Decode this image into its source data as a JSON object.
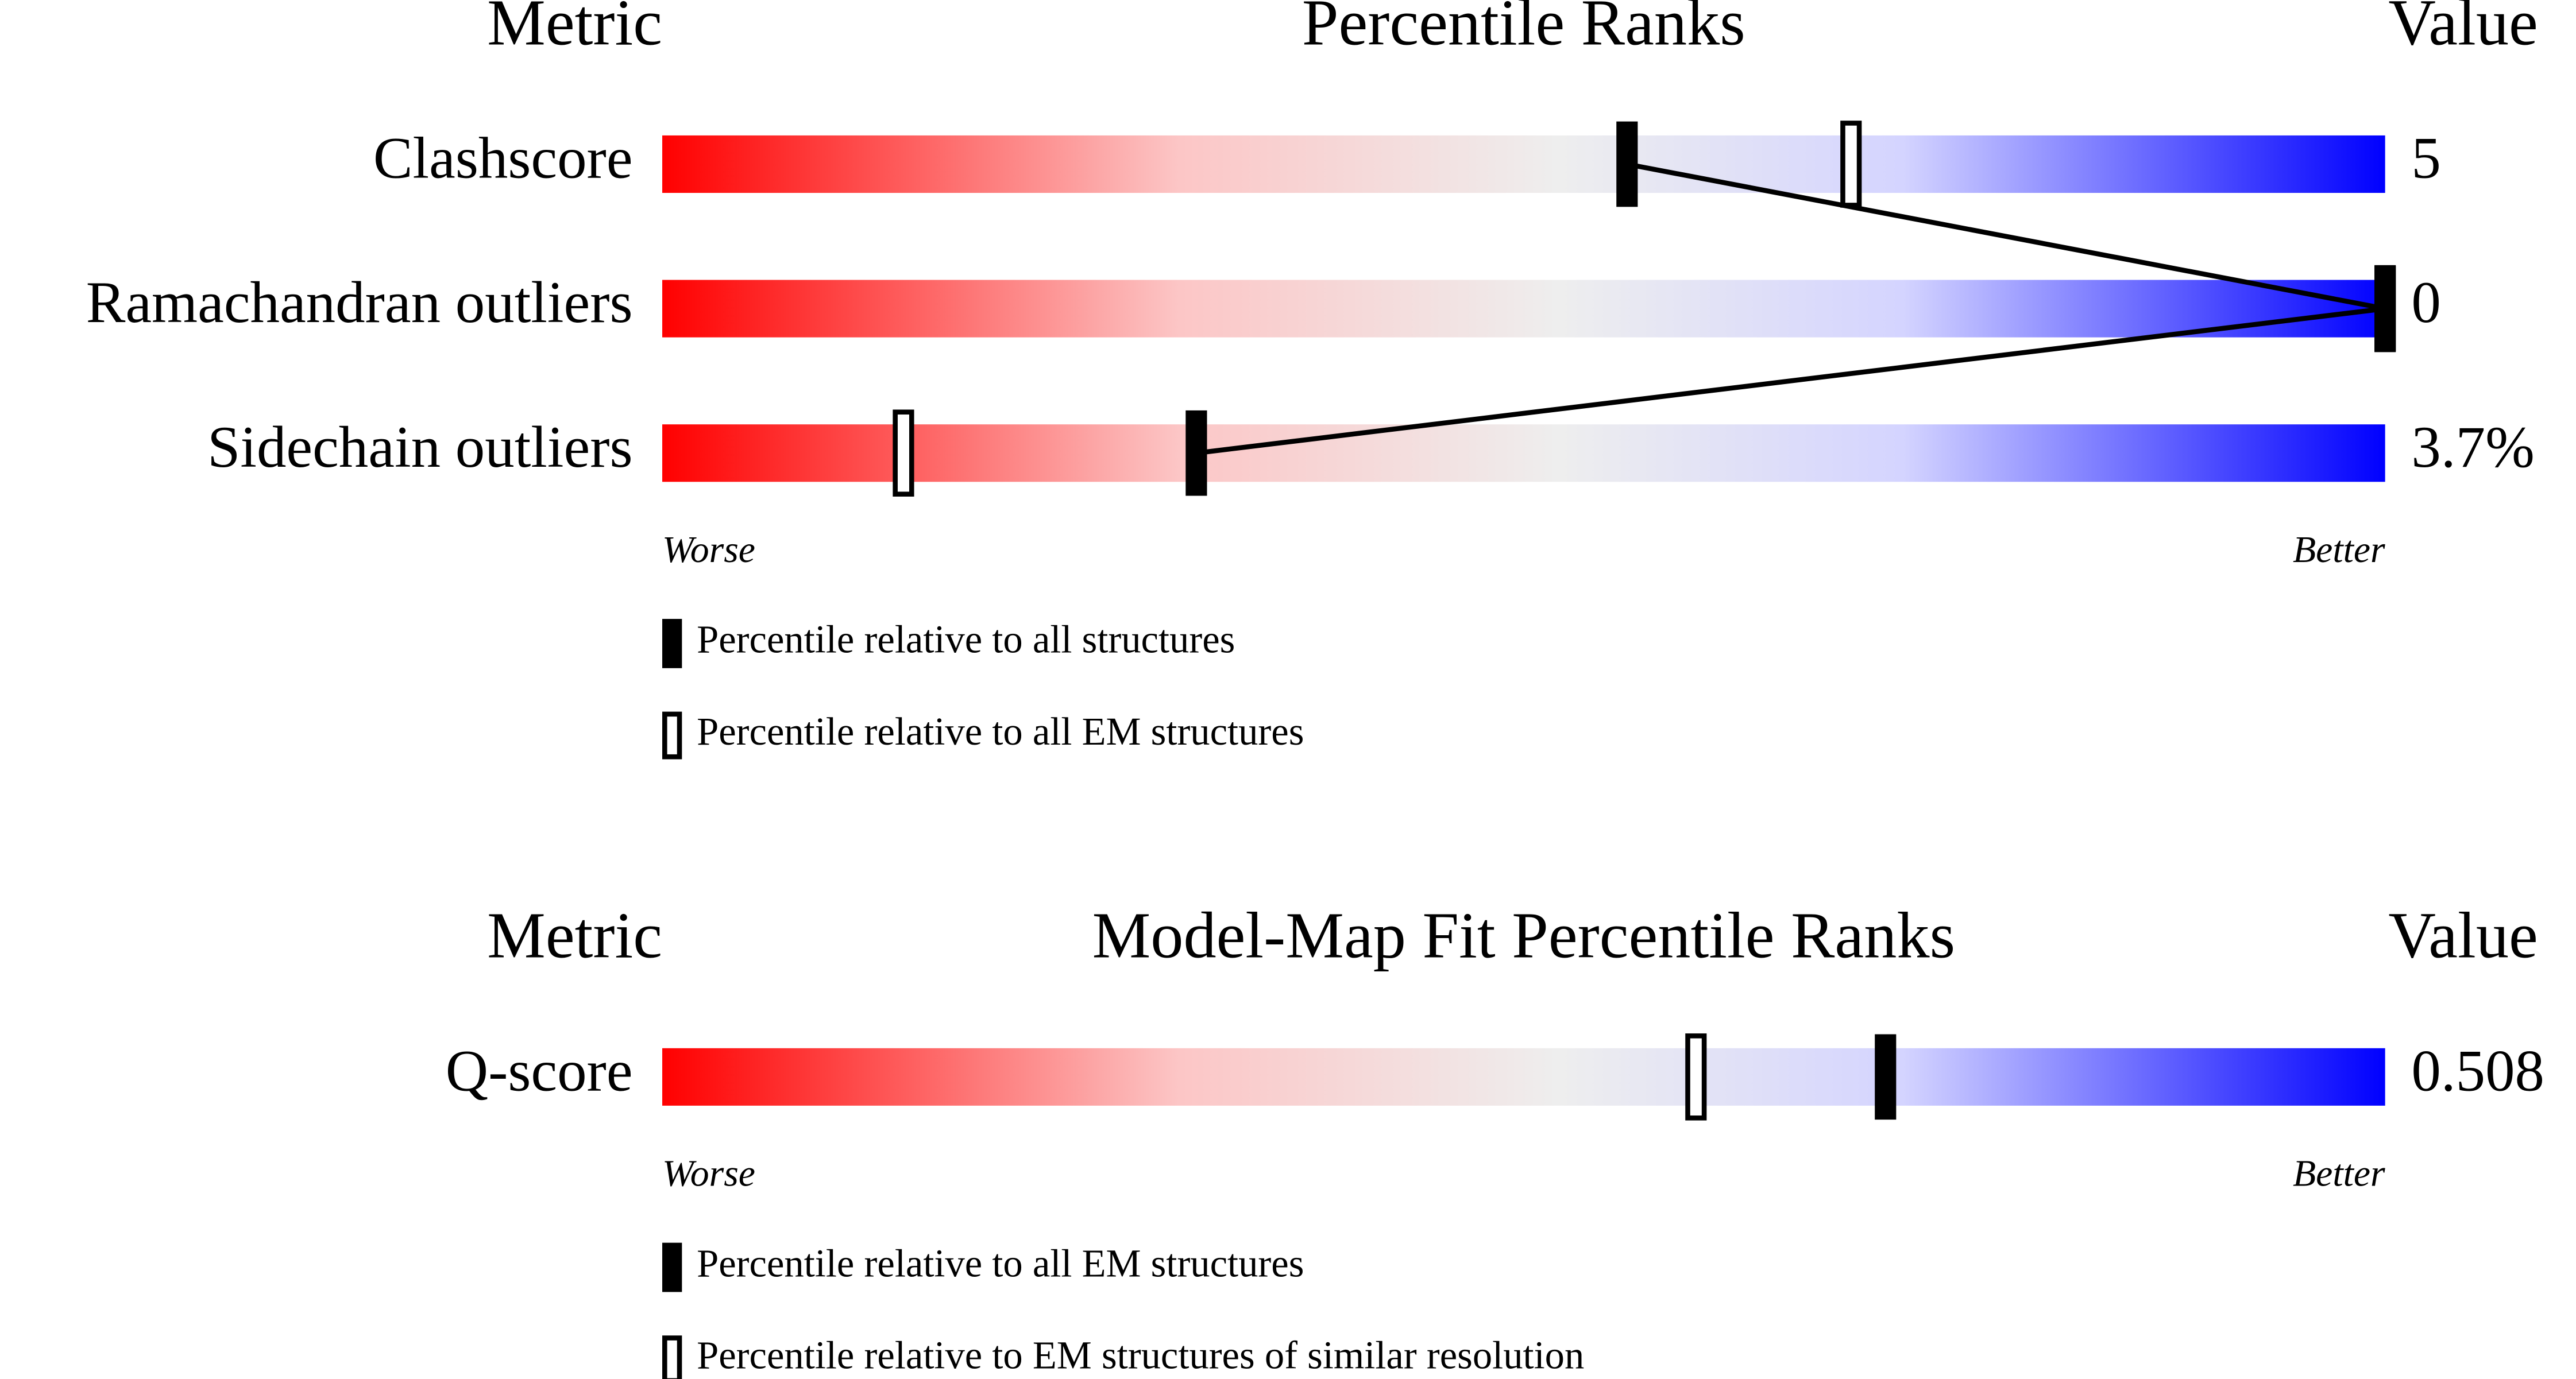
{
  "chart_data": [
    {
      "type": "percentile",
      "header_metric": "Metric",
      "title": "Percentile Ranks",
      "header_value": "Value",
      "categories": [
        "Clashscore",
        "Ramachandran outliers",
        "Sidechain outliers"
      ],
      "metric_values": [
        "5",
        "0",
        "3.7%"
      ],
      "series": [
        {
          "name": "Percentile relative to all structures",
          "style": "filled",
          "color": "#000000",
          "values": [
            56,
            100,
            31
          ]
        },
        {
          "name": "Percentile relative to all EM structures",
          "style": "open",
          "color": "#000000",
          "values": [
            69,
            100,
            14
          ]
        }
      ],
      "xlim": [
        0,
        100
      ],
      "low_label": "Worse",
      "high_label": "Better",
      "connect_series": 0
    },
    {
      "type": "percentile",
      "header_metric": "Metric",
      "title": "Model-Map Fit Percentile Ranks",
      "header_value": "Value",
      "categories": [
        "Q-score"
      ],
      "metric_values": [
        "0.508"
      ],
      "series": [
        {
          "name": "Percentile relative to all EM structures",
          "style": "filled",
          "color": "#000000",
          "values": [
            71
          ]
        },
        {
          "name": "Percentile relative to EM structures of similar resolution",
          "style": "open",
          "color": "#000000",
          "values": [
            60
          ]
        }
      ],
      "xlim": [
        0,
        100
      ],
      "low_label": "Worse",
      "high_label": "Better"
    }
  ]
}
